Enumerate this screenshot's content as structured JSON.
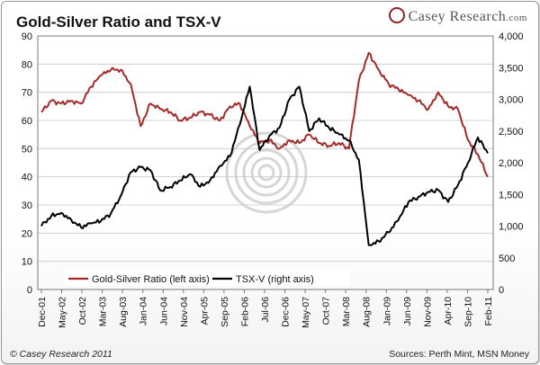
{
  "brand": {
    "name": "Casey Research",
    "suffix": ".com"
  },
  "footer": {
    "copyright": "© Casey Research 2011",
    "sources": "Sources: Perth Mint, MSN Money"
  },
  "colors": {
    "gold_silver": "#a52a2a",
    "tsxv": "#000000",
    "grid": "#c8c8c8"
  },
  "chart_data": {
    "type": "line",
    "title": "Gold-Silver Ratio and TSX-V",
    "x_tick_labels": [
      "Dec-01",
      "May-02",
      "Oct-02",
      "Mar-03",
      "Aug-03",
      "Jan-04",
      "Jun-04",
      "Nov-04",
      "Apr-05",
      "Sep-05",
      "Feb-06",
      "Jul-06",
      "Dec-06",
      "May-07",
      "Oct-07",
      "Mar-08",
      "Aug-08",
      "Jan-09",
      "Jun-09",
      "Nov-09",
      "Apr-10",
      "Sep-10",
      "Feb-11"
    ],
    "ylim_left": [
      0,
      90
    ],
    "yticks_left": [
      0,
      10,
      20,
      30,
      40,
      50,
      60,
      70,
      80,
      90
    ],
    "ylim_right": [
      0,
      4000
    ],
    "yticks_right": [
      "0",
      "500",
      "1,000",
      "1,500",
      "2,000",
      "2,500",
      "3,000",
      "3,500",
      "4,000"
    ],
    "grid": true,
    "legend": "bottom-left, inside plot",
    "series": [
      {
        "name": "Gold-Silver Ratio (left axis)",
        "axis": "left",
        "x": [
          "Dec-01",
          "Feb-02",
          "May-02",
          "Aug-02",
          "Oct-02",
          "Jan-03",
          "Mar-03",
          "Jun-03",
          "Aug-03",
          "Nov-03",
          "Jan-04",
          "Mar-04",
          "Jun-04",
          "Aug-04",
          "Nov-04",
          "Feb-05",
          "Apr-05",
          "Jul-05",
          "Sep-05",
          "Dec-05",
          "Feb-06",
          "Apr-06",
          "Jul-06",
          "Sep-06",
          "Dec-06",
          "Feb-07",
          "May-07",
          "Aug-07",
          "Oct-07",
          "Jan-08",
          "Mar-08",
          "Jun-08",
          "Aug-08",
          "Oct-08",
          "Jan-09",
          "Mar-09",
          "Jun-09",
          "Aug-09",
          "Nov-09",
          "Feb-10",
          "Apr-10",
          "Jul-10",
          "Sep-10",
          "Dec-10",
          "Feb-11",
          "Apr-11"
        ],
        "values": [
          63,
          67,
          66,
          67,
          66,
          72,
          76,
          78,
          78,
          73,
          58,
          66,
          64,
          63,
          60,
          61,
          63,
          62,
          60,
          65,
          66,
          58,
          52,
          53,
          50,
          53,
          52,
          55,
          52,
          51,
          52,
          50,
          74,
          84,
          78,
          73,
          71,
          69,
          67,
          64,
          70,
          65,
          64,
          53,
          48,
          40
        ]
      },
      {
        "name": "TSX-V (right axis)",
        "axis": "right",
        "x": [
          "Dec-01",
          "Feb-02",
          "May-02",
          "Aug-02",
          "Oct-02",
          "Jan-03",
          "Mar-03",
          "Jun-03",
          "Aug-03",
          "Nov-03",
          "Jan-04",
          "Mar-04",
          "Jun-04",
          "Aug-04",
          "Nov-04",
          "Feb-05",
          "Apr-05",
          "Jul-05",
          "Sep-05",
          "Dec-05",
          "Feb-06",
          "Apr-06",
          "Jul-06",
          "Sep-06",
          "Dec-06",
          "Feb-07",
          "May-07",
          "Aug-07",
          "Oct-07",
          "Jan-08",
          "Mar-08",
          "Jun-08",
          "Aug-08",
          "Oct-08",
          "Jan-09",
          "Mar-09",
          "Jun-09",
          "Aug-09",
          "Nov-09",
          "Feb-10",
          "Apr-10",
          "Jul-10",
          "Sep-10",
          "Dec-10",
          "Feb-11",
          "Apr-11"
        ],
        "values": [
          1000,
          1160,
          1210,
          1100,
          980,
          1040,
          1080,
          1200,
          1480,
          1850,
          1930,
          1880,
          1560,
          1620,
          1720,
          1820,
          1620,
          1720,
          1950,
          2100,
          2600,
          3200,
          2200,
          2430,
          2550,
          3000,
          3200,
          2500,
          2700,
          2550,
          2450,
          2350,
          2050,
          700,
          760,
          900,
          1100,
          1380,
          1460,
          1540,
          1570,
          1380,
          1650,
          2000,
          2400,
          2150
        ]
      }
    ]
  }
}
